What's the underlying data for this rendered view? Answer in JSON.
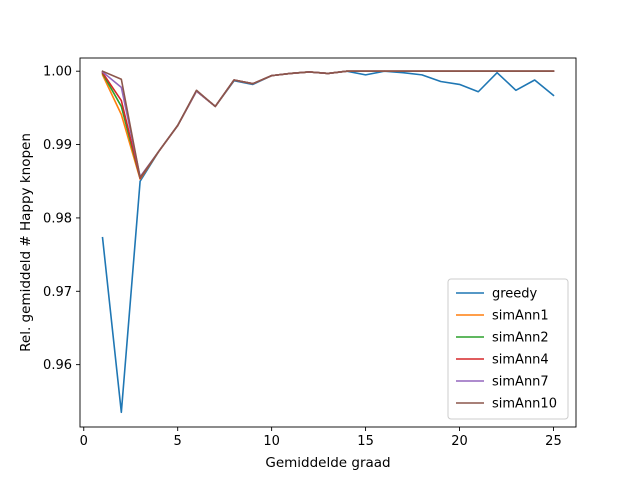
{
  "chart_data": {
    "type": "line",
    "title": "",
    "xlabel": "Gemiddelde graad",
    "ylabel": "Rel. gemiddeld # Happy knopen",
    "xlim": [
      -0.2,
      26.2
    ],
    "ylim": [
      0.9515,
      1.0018
    ],
    "xticks": [
      0,
      5,
      10,
      15,
      20,
      25
    ],
    "xtick_labels": [
      "0",
      "5",
      "10",
      "15",
      "20",
      "25"
    ],
    "yticks": [
      0.96,
      0.97,
      0.98,
      0.99,
      1.0
    ],
    "ytick_labels": [
      "0.96",
      "0.97",
      "0.98",
      "0.99",
      "1.00"
    ],
    "grid": false,
    "legend_position": "lower-right",
    "x": [
      1,
      2,
      3,
      4,
      5,
      6,
      7,
      8,
      9,
      10,
      11,
      12,
      13,
      14,
      15,
      16,
      17,
      18,
      19,
      20,
      21,
      22,
      23,
      24,
      25
    ],
    "series": [
      {
        "name": "greedy",
        "color": "#1f77b4",
        "values": [
          0.9773,
          0.9535,
          0.985,
          0.9891,
          0.9926,
          0.9973,
          0.9952,
          0.9987,
          0.9982,
          0.9994,
          0.9997,
          0.9999,
          0.9997,
          1.0,
          0.9995,
          1.0,
          0.9998,
          0.9995,
          0.9986,
          0.9982,
          0.9972,
          0.9998,
          0.9974,
          0.9988,
          0.9967
        ]
      },
      {
        "name": "simAnn1",
        "color": "#ff7f0e",
        "values": [
          0.9995,
          0.9941,
          0.9853,
          0.9891,
          0.9926,
          0.9973,
          0.9952,
          0.9988,
          0.9983,
          0.9994,
          0.9997,
          0.9999,
          0.9997,
          1.0,
          1.0,
          1.0,
          1.0,
          1.0,
          1.0,
          1.0,
          1.0,
          1.0,
          1.0,
          1.0,
          1.0
        ]
      },
      {
        "name": "simAnn2",
        "color": "#2ca02c",
        "values": [
          0.9997,
          0.9952,
          0.9854,
          0.9891,
          0.9926,
          0.9973,
          0.9952,
          0.9988,
          0.9983,
          0.9994,
          0.9997,
          0.9999,
          0.9997,
          1.0,
          1.0,
          1.0,
          1.0,
          1.0,
          1.0,
          1.0,
          1.0,
          1.0,
          1.0,
          1.0,
          1.0
        ]
      },
      {
        "name": "simAnn4",
        "color": "#d62728",
        "values": [
          0.9998,
          0.996,
          0.9854,
          0.9891,
          0.9926,
          0.9973,
          0.9952,
          0.9988,
          0.9983,
          0.9994,
          0.9997,
          0.9999,
          0.9997,
          1.0,
          1.0,
          1.0,
          1.0,
          1.0,
          1.0,
          1.0,
          1.0,
          1.0,
          1.0,
          1.0,
          1.0
        ]
      },
      {
        "name": "simAnn7",
        "color": "#9467bd",
        "values": [
          0.9999,
          0.9978,
          0.9856,
          0.9891,
          0.9926,
          0.9973,
          0.9952,
          0.9988,
          0.9983,
          0.9994,
          0.9997,
          0.9999,
          0.9997,
          1.0,
          1.0,
          1.0,
          1.0,
          1.0,
          1.0,
          1.0,
          1.0,
          1.0,
          1.0,
          1.0,
          1.0
        ]
      },
      {
        "name": "simAnn10",
        "color": "#8c564b",
        "values": [
          1.0,
          0.9989,
          0.9855,
          0.9891,
          0.9926,
          0.9974,
          0.9952,
          0.9988,
          0.9983,
          0.9994,
          0.9997,
          0.9999,
          0.9997,
          1.0,
          1.0,
          1.0,
          1.0,
          1.0,
          1.0,
          1.0,
          1.0,
          1.0,
          1.0,
          1.0,
          1.0
        ]
      }
    ]
  }
}
